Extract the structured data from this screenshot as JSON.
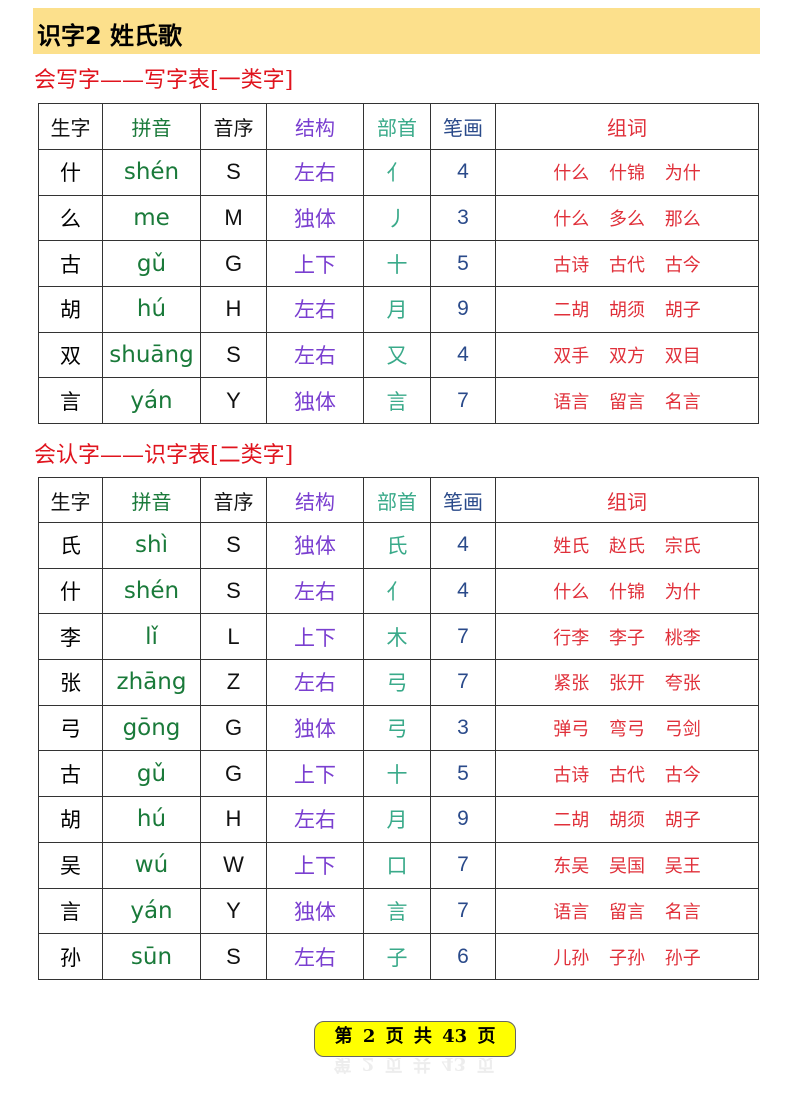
{
  "title": "识字2  姓氏歌",
  "headers": {
    "char": "生字",
    "pinyin": "拼音",
    "letter": "音序",
    "structure": "结构",
    "radical": "部首",
    "strokes": "笔画",
    "words": "组词"
  },
  "colors": {
    "banner": "#fce08c",
    "section": "#e0141e",
    "pinyin": "#1a7a3a",
    "structure": "#7a3fd0",
    "radical": "#3aaa8a",
    "strokes": "#2a4a8a",
    "words": "#e0303a"
  },
  "table1": {
    "title": "会写字——写字表[一类字]",
    "rows": [
      {
        "char": "什",
        "pinyin": "shén",
        "letter": "S",
        "structure": "左右",
        "radical": "亻",
        "strokes": "4",
        "words": "什么 什锦 为什"
      },
      {
        "char": "么",
        "pinyin": "me",
        "letter": "M",
        "structure": "独体",
        "radical": "丿",
        "strokes": "3",
        "words": "什么 多么 那么"
      },
      {
        "char": "古",
        "pinyin": "gǔ",
        "letter": "G",
        "structure": "上下",
        "radical": "十",
        "strokes": "5",
        "words": "古诗 古代 古今"
      },
      {
        "char": "胡",
        "pinyin": "hú",
        "letter": "H",
        "structure": "左右",
        "radical": "月",
        "strokes": "9",
        "words": "二胡 胡须 胡子"
      },
      {
        "char": "双",
        "pinyin": "shuāng",
        "letter": "S",
        "structure": "左右",
        "radical": "又",
        "strokes": "4",
        "words": "双手 双方 双目"
      },
      {
        "char": "言",
        "pinyin": "yán",
        "letter": "Y",
        "structure": "独体",
        "radical": "言",
        "strokes": "7",
        "words": "语言 留言 名言"
      }
    ]
  },
  "table2": {
    "title": "会认字——识字表[二类字]",
    "rows": [
      {
        "char": "氏",
        "pinyin": "shì",
        "letter": "S",
        "structure": "独体",
        "radical": "氏",
        "strokes": "4",
        "words": "姓氏 赵氏 宗氏"
      },
      {
        "char": "什",
        "pinyin": "shén",
        "letter": "S",
        "structure": "左右",
        "radical": "亻",
        "strokes": "4",
        "words": "什么 什锦 为什"
      },
      {
        "char": "李",
        "pinyin": "lǐ",
        "letter": "L",
        "structure": "上下",
        "radical": "木",
        "strokes": "7",
        "words": "行李 李子 桃李"
      },
      {
        "char": "张",
        "pinyin": "zhāng",
        "letter": "Z",
        "structure": "左右",
        "radical": "弓",
        "strokes": "7",
        "words": "紧张 张开 夸张"
      },
      {
        "char": "弓",
        "pinyin": "gōng",
        "letter": "G",
        "structure": "独体",
        "radical": "弓",
        "strokes": "3",
        "words": "弹弓 弯弓 弓剑"
      },
      {
        "char": "古",
        "pinyin": "gǔ",
        "letter": "G",
        "structure": "上下",
        "radical": "十",
        "strokes": "5",
        "words": "古诗 古代 古今"
      },
      {
        "char": "胡",
        "pinyin": "hú",
        "letter": "H",
        "structure": "左右",
        "radical": "月",
        "strokes": "9",
        "words": "二胡 胡须 胡子"
      },
      {
        "char": "吴",
        "pinyin": "wú",
        "letter": "W",
        "structure": "上下",
        "radical": "口",
        "strokes": "7",
        "words": "东吴 吴国 吴王"
      },
      {
        "char": "言",
        "pinyin": "yán",
        "letter": "Y",
        "structure": "独体",
        "radical": "言",
        "strokes": "7",
        "words": "语言 留言 名言"
      },
      {
        "char": "孙",
        "pinyin": "sūn",
        "letter": "S",
        "structure": "左右",
        "radical": "子",
        "strokes": "6",
        "words": "儿孙 子孙 孙子"
      }
    ]
  },
  "footer": {
    "page_label": "第 2 页 共 43 页"
  }
}
